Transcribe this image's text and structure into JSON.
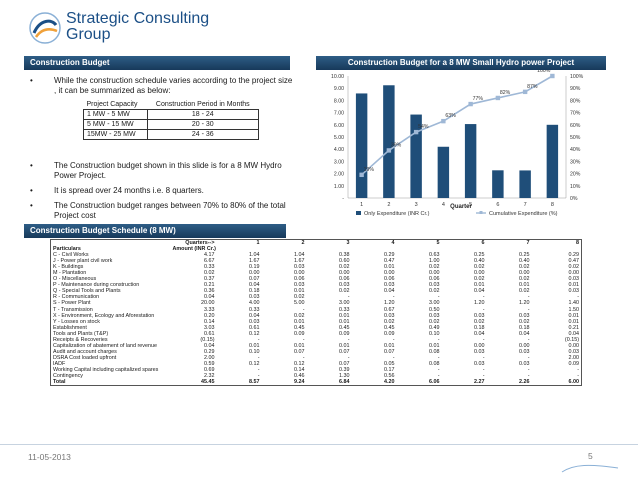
{
  "logo": {
    "line1": "Strategic Consulting",
    "line2": "Group"
  },
  "left_panel": {
    "header": "Construction Budget",
    "bullet_glyph": "•",
    "bullets": [
      "While the construction schedule varies according to the project size , it can be summarized as below:",
      "The Construction budget shown in this slide is for a 8 MW Hydro Power Project.",
      "It is spread over 24 months i.e. 8 quarters.",
      "The Construction budget ranges between 70% to 80% of the total Project cost"
    ],
    "capacity_table": {
      "headers": [
        "Project Capacity",
        "Construction Period in Months"
      ],
      "rows": [
        [
          "1 MW - 5 MW",
          "18 - 24"
        ],
        [
          "5 MW - 15 MW",
          "20 - 30"
        ],
        [
          "15MW - 25 MW",
          "24 - 36"
        ]
      ]
    }
  },
  "chart_header": "Construction Budget for a 8 MW Small Hydro power Project",
  "chart_data": {
    "type": "bar",
    "categories": [
      "1",
      "2",
      "3",
      "4",
      "5",
      "6",
      "7",
      "8"
    ],
    "series": [
      {
        "name": "Only Expenditure (INR Cr.)",
        "type": "bar",
        "axis": "left",
        "values": [
          8.57,
          9.24,
          6.84,
          4.2,
          6.06,
          2.27,
          2.26,
          6.0
        ]
      },
      {
        "name": "Cumulative Expenditure (%)",
        "type": "line",
        "axis": "right",
        "values": [
          19,
          39,
          54,
          63,
          77,
          82,
          87,
          100
        ],
        "labels": [
          "19%",
          "39%",
          "54%",
          "63%",
          "77%",
          "82%",
          "87%",
          "100%"
        ]
      }
    ],
    "xlabel": "Quarter",
    "y_left": {
      "ticks": [
        "-",
        "1.00",
        "2.00",
        "3.00",
        "4.00",
        "5.00",
        "6.00",
        "7.00",
        "8.00",
        "9.00",
        "10.00"
      ],
      "range": [
        0,
        10
      ]
    },
    "y_right": {
      "ticks": [
        "0%",
        "10%",
        "20%",
        "30%",
        "40%",
        "50%",
        "60%",
        "70%",
        "80%",
        "90%",
        "100%"
      ],
      "range": [
        0,
        100
      ]
    },
    "legend": "bottom",
    "colors": {
      "bar": "#1f4e79",
      "line": "#9fb8d6"
    }
  },
  "schedule": {
    "header": "Construction Budget Schedule (8 MW)",
    "quarters_label": "Quarters-->",
    "particulars_label": "Particulars",
    "amount_label": "Amount (INR Cr.)",
    "quarters": [
      "1",
      "2",
      "3",
      "4",
      "5",
      "6",
      "7",
      "8"
    ],
    "rows": [
      [
        "C - Civil Works",
        "4.17",
        "1.04",
        "1.04",
        "0.38",
        "0.29",
        "0.63",
        "0.25",
        "0.25",
        "0.29"
      ],
      [
        "J - Power plant civil work",
        "6.67",
        "1.67",
        "1.67",
        "0.60",
        "0.47",
        "1.00",
        "0.40",
        "0.40",
        "0.47"
      ],
      [
        "K - Buildings",
        "0.33",
        "0.19",
        "0.03",
        "0.02",
        "0.01",
        "0.02",
        "0.02",
        "0.02",
        "0.02"
      ],
      [
        "M - Plantation",
        "0.02",
        "0.00",
        "0.00",
        "0.00",
        "0.00",
        "0.00",
        "0.00",
        "0.00",
        "0.00"
      ],
      [
        "O - Miscellaneous",
        "0.37",
        "0.07",
        "0.06",
        "0.06",
        "0.06",
        "0.06",
        "0.02",
        "0.02",
        "0.03"
      ],
      [
        "P - Maintenance during construction",
        "0.21",
        "0.04",
        "0.03",
        "0.03",
        "0.03",
        "0.03",
        "0.01",
        "0.01",
        "0.01"
      ],
      [
        "Q - Special Tools and Plants",
        "0.36",
        "0.18",
        "0.01",
        "0.02",
        "0.04",
        "0.02",
        "0.04",
        "0.02",
        "0.03"
      ],
      [
        "R - Communication",
        "0.04",
        "0.03",
        "0.02",
        "-",
        "-",
        "-",
        "-",
        "-",
        "-"
      ],
      [
        "S - Power Plant",
        "20.00",
        "4.00",
        "5.00",
        "3.00",
        "1.20",
        "3.00",
        "1.20",
        "1.20",
        "1.40"
      ],
      [
        "T - Transmission",
        "3.33",
        "0.33",
        "-",
        "0.33",
        "0.67",
        "0.50",
        "-",
        "-",
        "1.50"
      ],
      [
        "X - Environment, Ecology and Aforestation",
        "0.20",
        "0.04",
        "0.02",
        "0.01",
        "0.03",
        "0.03",
        "0.03",
        "0.03",
        "0.01"
      ],
      [
        "Y - Losses on stock",
        "0.14",
        "0.03",
        "0.01",
        "0.01",
        "0.02",
        "0.02",
        "0.02",
        "0.02",
        "0.01"
      ],
      [
        "Establishment",
        "3.03",
        "0.61",
        "0.45",
        "0.45",
        "0.45",
        "0.49",
        "0.18",
        "0.18",
        "0.21"
      ],
      [
        "Tools and Plants (T&P)",
        "0.61",
        "0.12",
        "0.09",
        "0.09",
        "0.09",
        "0.10",
        "0.04",
        "0.04",
        "0.04"
      ],
      [
        "Receipts & Recoveries",
        "(0.15)",
        "-",
        "-",
        "-",
        "-",
        "-",
        "-",
        "-",
        "(0.15)"
      ],
      [
        "Capitalization of abatement of land revenue",
        "0.04",
        "0.01",
        "0.01",
        "0.01",
        "0.01",
        "0.01",
        "0.00",
        "0.00",
        "0.00"
      ],
      [
        "Audit and account charges",
        "0.29",
        "0.10",
        "0.07",
        "0.07",
        "0.07",
        "0.08",
        "0.03",
        "0.03",
        "0.03"
      ],
      [
        "DSRA Cost loaded upfront",
        "2.00",
        "-",
        "-",
        "-",
        "-",
        "-",
        "-",
        "-",
        "2.00"
      ],
      [
        "IADF",
        "0.59",
        "0.12",
        "0.12",
        "0.07",
        "0.05",
        "0.08",
        "0.03",
        "0.03",
        "0.09"
      ],
      [
        "Working Capital including capitalized spares",
        "0.69",
        "-",
        "0.14",
        "0.39",
        "0.17",
        "-",
        "-",
        "-",
        "-"
      ],
      [
        "Contingency",
        "2.32",
        "-",
        "0.46",
        "1.30",
        "0.56",
        "-",
        "-",
        "-",
        "-"
      ]
    ],
    "total": [
      "Total",
      "45.45",
      "8.57",
      "9.24",
      "6.84",
      "4.20",
      "6.06",
      "2.27",
      "2.26",
      "6.00"
    ]
  },
  "footer": {
    "date": "11-05-2013",
    "page": "5"
  },
  "colors": {
    "header_bg": "#1f4a70",
    "brand_blue": "#1b4f86"
  }
}
